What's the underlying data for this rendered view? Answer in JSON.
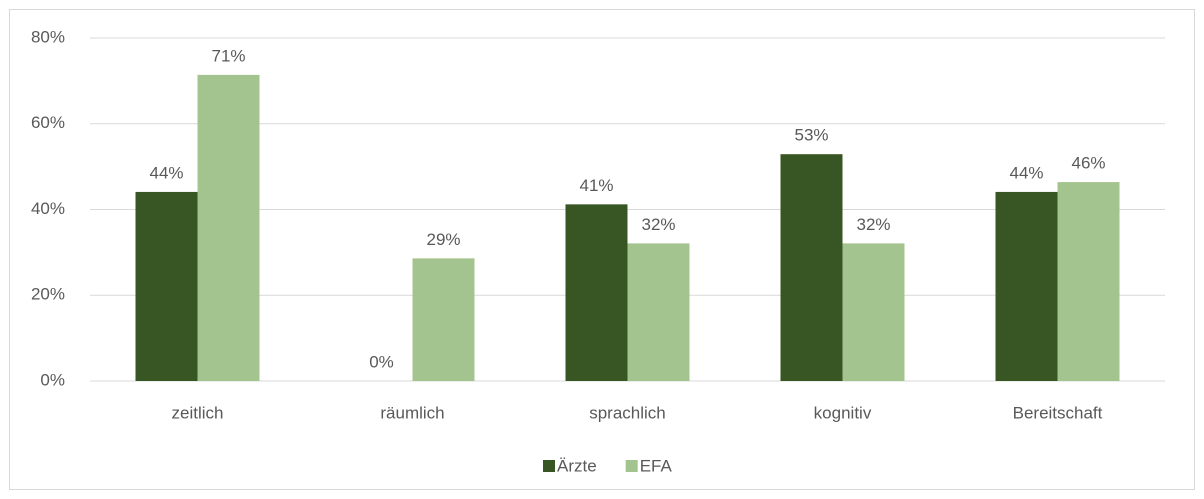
{
  "chart_data": {
    "type": "bar",
    "categories": [
      "zeitlich",
      "räumlich",
      "sprachlich",
      "kognitiv",
      "Bereitschaft"
    ],
    "series": [
      {
        "name": "Ärzte",
        "color": "#375623",
        "values": [
          44.1,
          0,
          41.2,
          52.9,
          44.1
        ],
        "value_labels": [
          "44%",
          "0%",
          "41%",
          "53%",
          "44%"
        ]
      },
      {
        "name": "EFA",
        "color": "#a3c48e",
        "values": [
          71.4,
          28.6,
          32.1,
          32.1,
          46.4
        ],
        "value_labels": [
          "71%",
          "29%",
          "32%",
          "32%",
          "46%"
        ]
      }
    ],
    "ylim": [
      0,
      80
    ],
    "yticks": [
      {
        "value": 0,
        "label": "0%"
      },
      {
        "value": 20,
        "label": "20%"
      },
      {
        "value": 40,
        "label": "40%"
      },
      {
        "value": 60,
        "label": "60%"
      },
      {
        "value": 80,
        "label": "80%"
      }
    ],
    "grid": true,
    "legend": "bottom"
  }
}
